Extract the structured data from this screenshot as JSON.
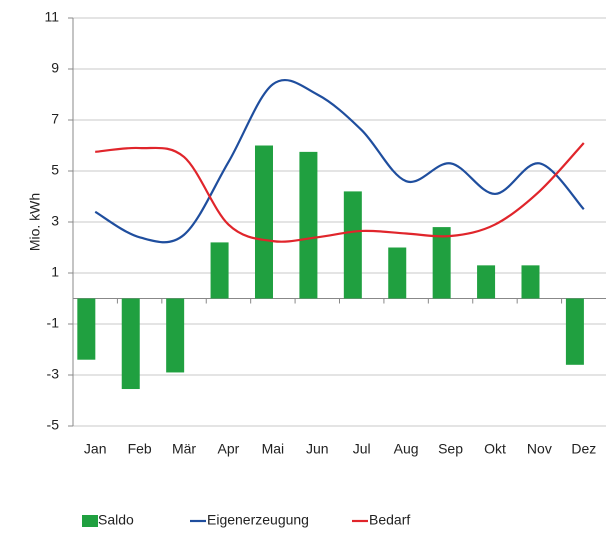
{
  "chart_data": {
    "type": "bar_line",
    "y_label": "Mio. kWh",
    "categories": [
      "Jan",
      "Feb",
      "Mär",
      "Apr",
      "Mai",
      "Jun",
      "Jul",
      "Aug",
      "Sep",
      "Okt",
      "Nov",
      "Dez"
    ],
    "series": [
      {
        "name": "Saldo",
        "type": "bar",
        "color": "#20a040",
        "values": [
          -2.4,
          -3.55,
          -2.9,
          2.2,
          6.0,
          5.75,
          4.2,
          2.0,
          2.8,
          1.3,
          1.3,
          -2.6
        ]
      },
      {
        "name": "Eigenerzeugung",
        "type": "line",
        "color": "#1f4e9e",
        "values": [
          3.4,
          2.4,
          2.5,
          5.35,
          8.4,
          8.0,
          6.6,
          4.6,
          5.3,
          4.1,
          5.3,
          3.5
        ]
      },
      {
        "name": "Bedarf",
        "type": "line",
        "color": "#e0252b",
        "values": [
          5.75,
          5.9,
          5.55,
          2.9,
          2.25,
          2.4,
          2.65,
          2.55,
          2.45,
          2.9,
          4.2,
          6.1
        ]
      }
    ],
    "ylim": [
      -5,
      11
    ],
    "yticks": [
      -5,
      -3,
      -1,
      1,
      3,
      5,
      7,
      9,
      11
    ],
    "grid": true,
    "legend": "bottom"
  }
}
